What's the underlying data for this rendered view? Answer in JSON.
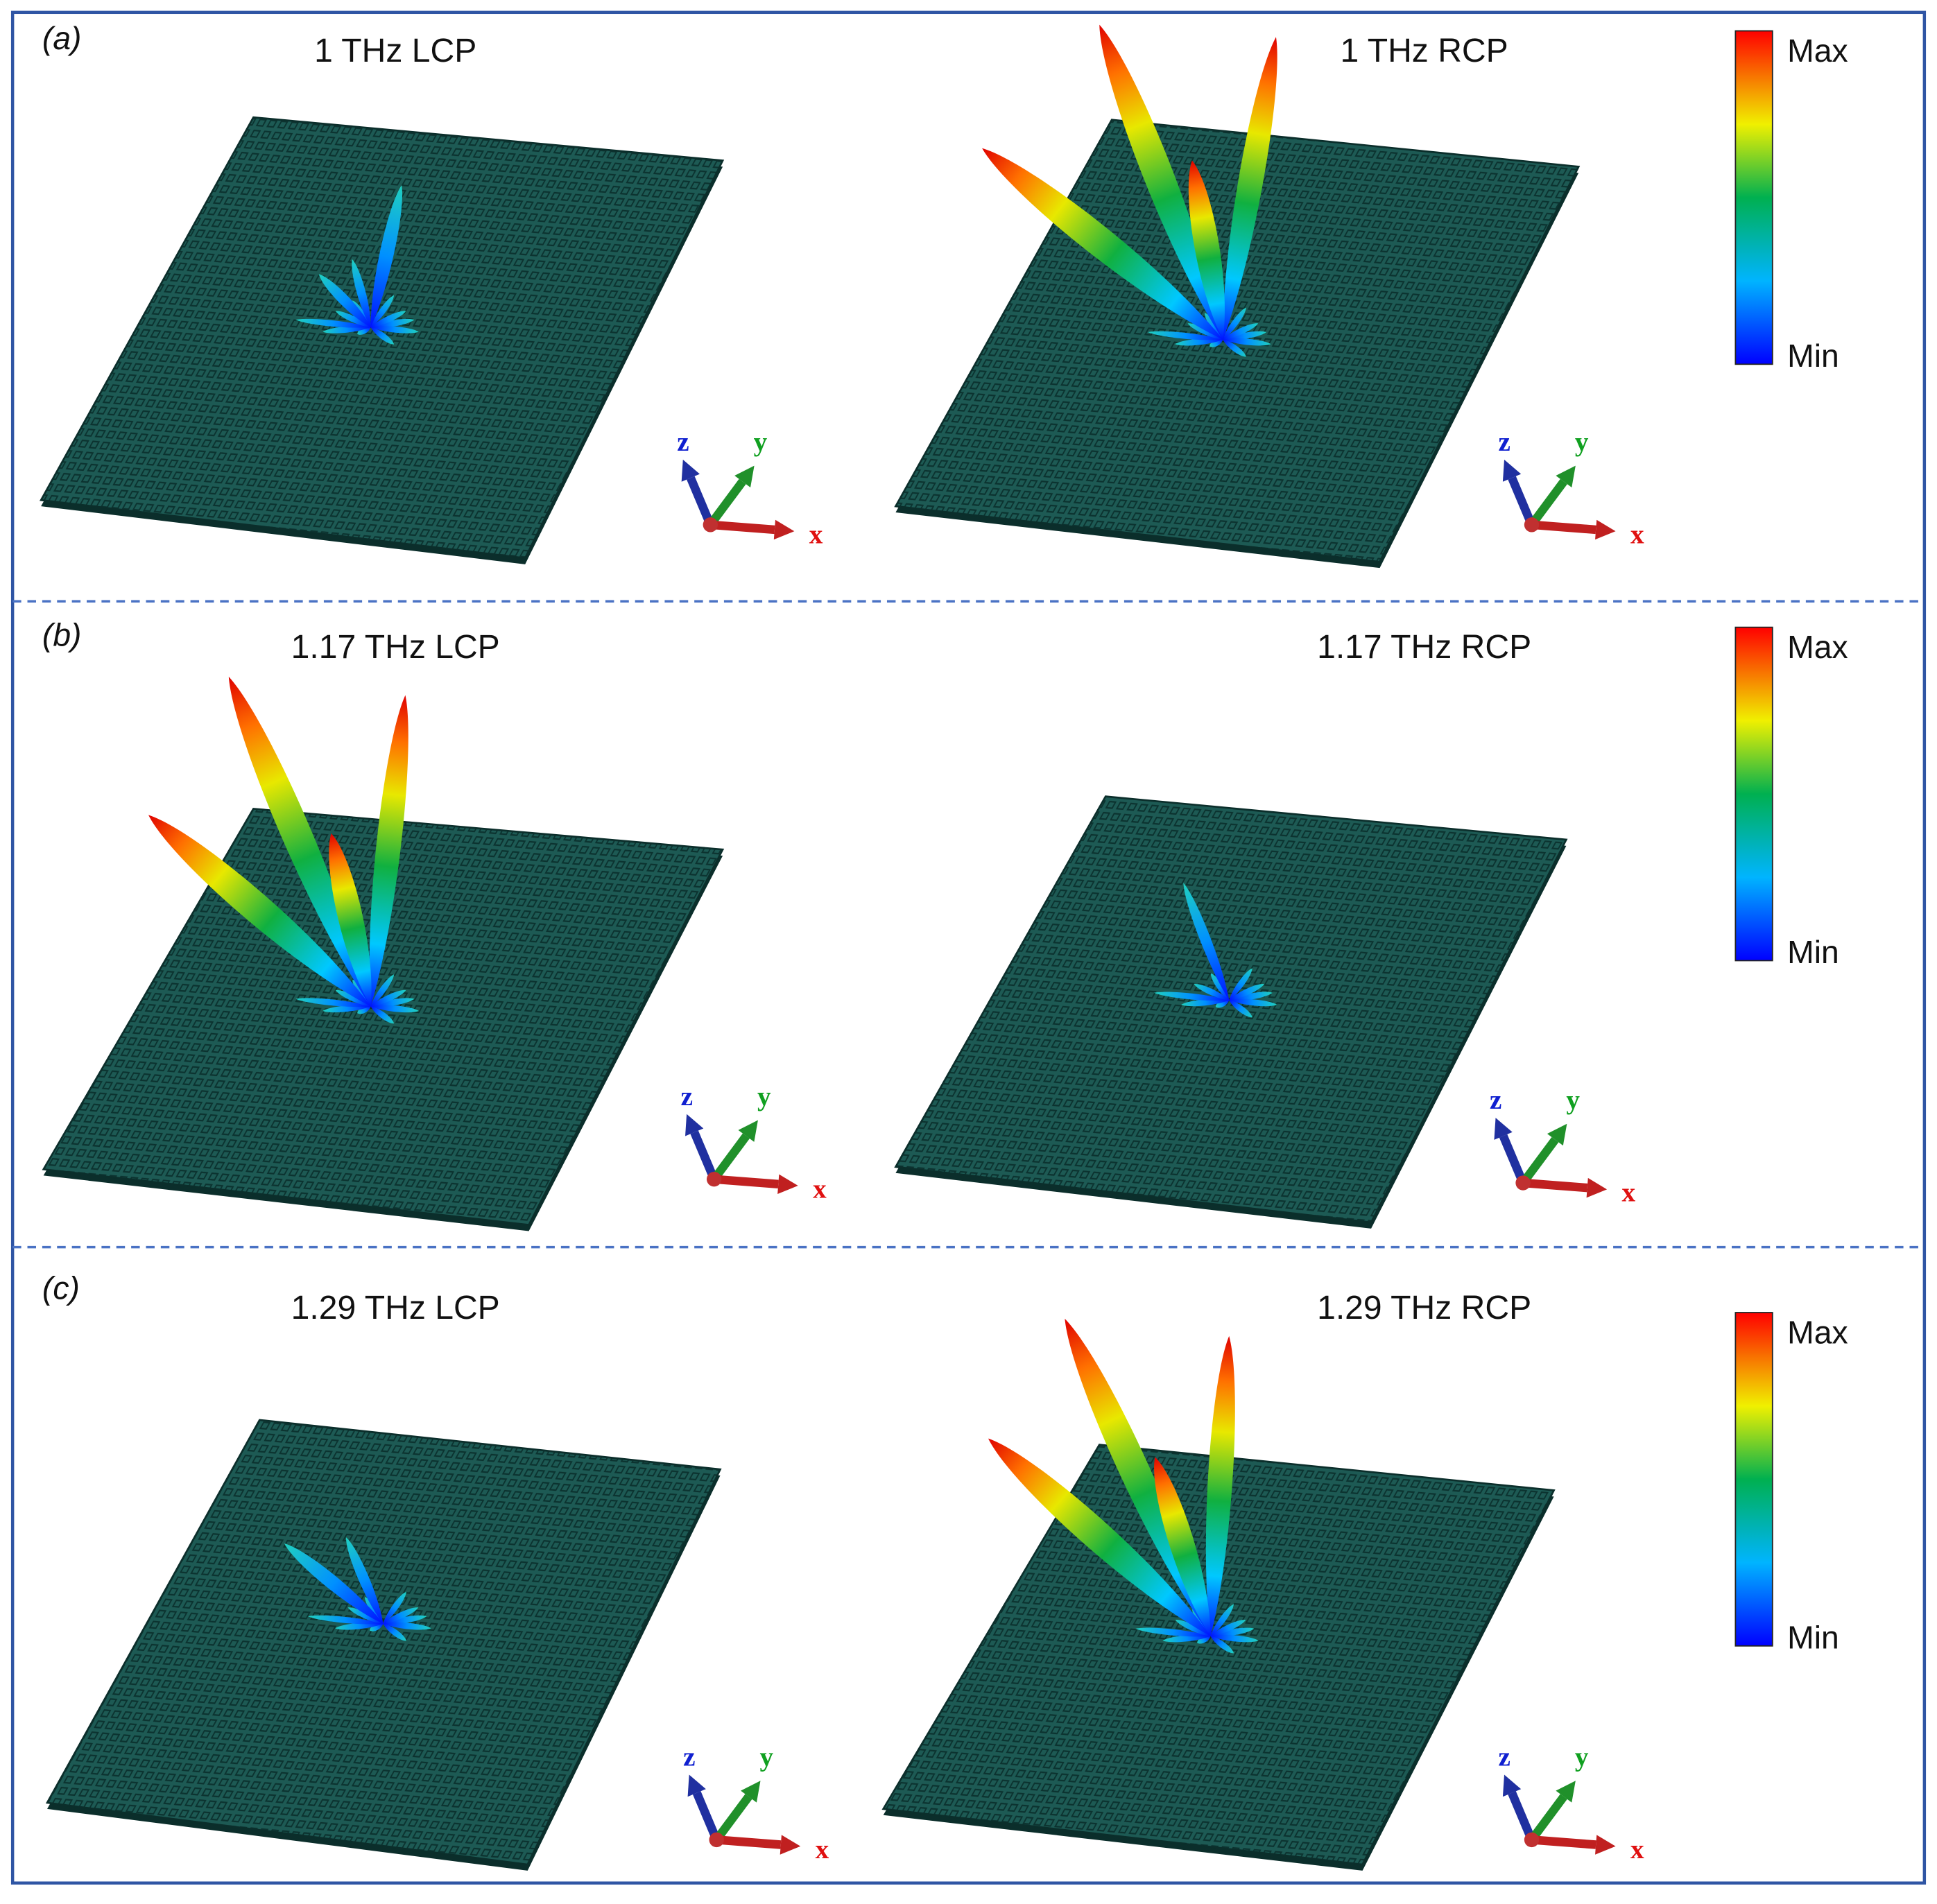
{
  "panels": [
    {
      "label": "(a)",
      "plots": [
        {
          "title": "1 THz LCP"
        },
        {
          "title": "1 THz RCP"
        }
      ],
      "colorbar": {
        "max": "Max",
        "min": "Min"
      }
    },
    {
      "label": "(b)",
      "plots": [
        {
          "title": "1.17 THz LCP"
        },
        {
          "title": "1.17 THz RCP"
        }
      ],
      "colorbar": {
        "max": "Max",
        "min": "Min"
      }
    },
    {
      "label": "(c)",
      "plots": [
        {
          "title": "1.29 THz LCP"
        },
        {
          "title": "1.29 THz RCP"
        }
      ],
      "colorbar": {
        "max": "Max",
        "min": "Min"
      }
    }
  ],
  "axes": {
    "x": "x",
    "y": "y",
    "z": "z"
  }
}
